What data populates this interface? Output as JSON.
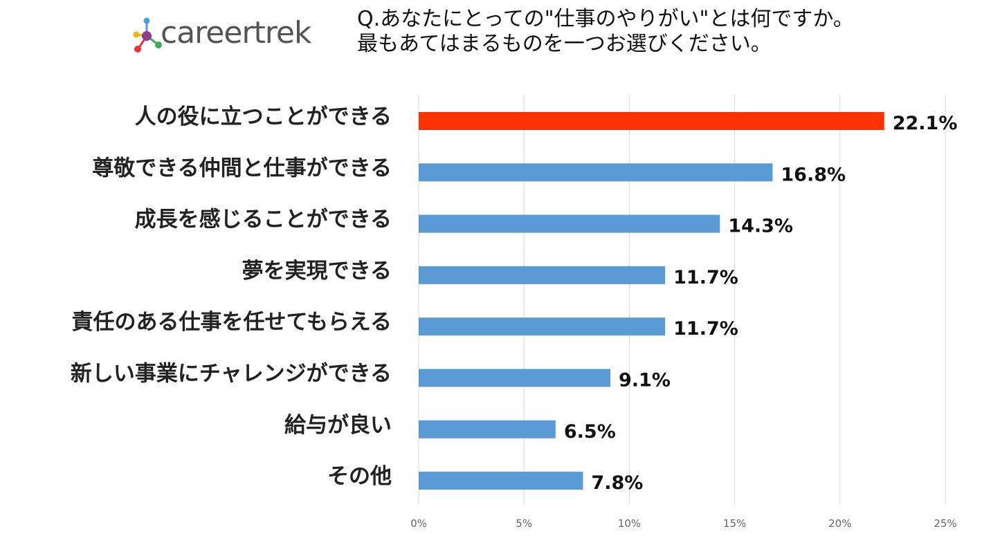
{
  "brand": {
    "name": "careertrek"
  },
  "question": {
    "line1": "Q.あなたにとっての\"仕事のやりがい\"とは何ですか。",
    "line2": "最もあてはまるものを一つお選びください。"
  },
  "colors": {
    "highlight": "#FF3300",
    "bar": "#5B9BD5",
    "grid": "#D9D9D9"
  },
  "chart_data": {
    "type": "bar",
    "orientation": "horizontal",
    "title": "",
    "xlabel": "",
    "ylabel": "",
    "xlim": [
      0,
      25
    ],
    "x_ticks": [
      "0%",
      "5%",
      "10%",
      "15%",
      "20%",
      "25%"
    ],
    "grid": "vertical",
    "categories": [
      "人の役に立つことができる",
      "尊敬できる仲間と仕事ができる",
      "成長を感じることができる",
      "夢を実現できる",
      "責任のある仕事を任せてもらえる",
      "新しい事業にチャレンジができる",
      "給与が良い",
      "その他"
    ],
    "values": [
      22.1,
      16.8,
      14.3,
      11.7,
      11.7,
      9.1,
      6.5,
      7.8
    ],
    "data_labels": [
      "22.1%",
      "16.8%",
      "14.3%",
      "11.7%",
      "11.7%",
      "9.1%",
      "6.5%",
      "7.8%"
    ],
    "highlight_index": 0
  }
}
